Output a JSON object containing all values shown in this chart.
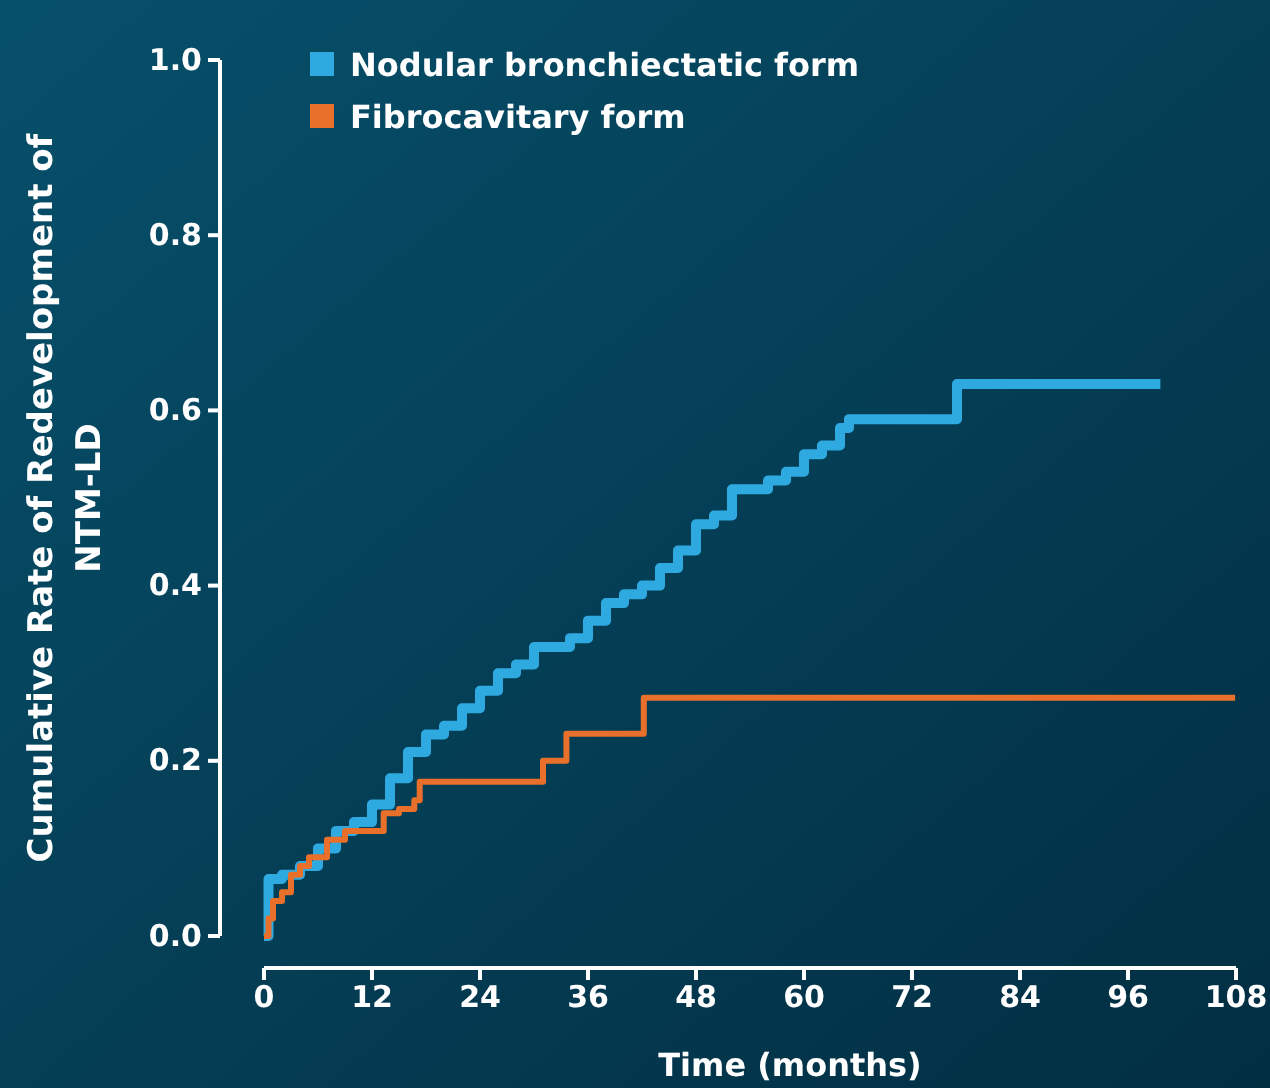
{
  "chart_data": {
    "type": "step",
    "xlabel": "Time (months)",
    "ylabel": "Cumulative Rate of Redevelopment of NTM-LD",
    "xlim": [
      0,
      108
    ],
    "xticks": [
      0,
      12,
      24,
      36,
      48,
      60,
      72,
      84,
      96,
      108
    ],
    "ylim": [
      0,
      1.0
    ],
    "yticks": [
      {
        "value": 0,
        "label": "0.0"
      },
      {
        "value": 0.2,
        "label": "0.2"
      },
      {
        "value": 0.4,
        "label": "0.4"
      },
      {
        "value": 0.6,
        "label": "0.6"
      },
      {
        "value": 0.8,
        "label": "0.8"
      },
      {
        "value": 1.0,
        "label": "1.0"
      }
    ],
    "grid": false,
    "legend": "top left",
    "series": [
      {
        "name": "Nodular bronchiectatic form",
        "color": "#2eaae1",
        "x": [
          0,
          0.5,
          2,
          4,
          6,
          8,
          10,
          12,
          14,
          16,
          18,
          20,
          22,
          24,
          26,
          28,
          30,
          32,
          34,
          36,
          38,
          40,
          42,
          44,
          46,
          48,
          50,
          52,
          54,
          56,
          58,
          60,
          62,
          64,
          65,
          77,
          99.6
        ],
        "values": [
          0,
          0.065,
          0.07,
          0.08,
          0.1,
          0.12,
          0.13,
          0.15,
          0.18,
          0.21,
          0.23,
          0.24,
          0.26,
          0.28,
          0.3,
          0.31,
          0.33,
          0.33,
          0.34,
          0.36,
          0.38,
          0.39,
          0.4,
          0.42,
          0.44,
          0.47,
          0.48,
          0.51,
          0.51,
          0.52,
          0.53,
          0.55,
          0.56,
          0.58,
          0.59,
          0.63,
          0.63
        ]
      },
      {
        "name": "Fibrocavitary form",
        "color": "#e8702a",
        "x": [
          0,
          0.5,
          1,
          2,
          3,
          4,
          5,
          7,
          9,
          13.3,
          15,
          16.7,
          17.3,
          31,
          33.6,
          42.2,
          107.9
        ],
        "values": [
          0,
          0.02,
          0.04,
          0.05,
          0.07,
          0.08,
          0.09,
          0.11,
          0.12,
          0.14,
          0.145,
          0.155,
          0.176,
          0.2,
          0.231,
          0.272,
          0.272
        ]
      }
    ]
  }
}
